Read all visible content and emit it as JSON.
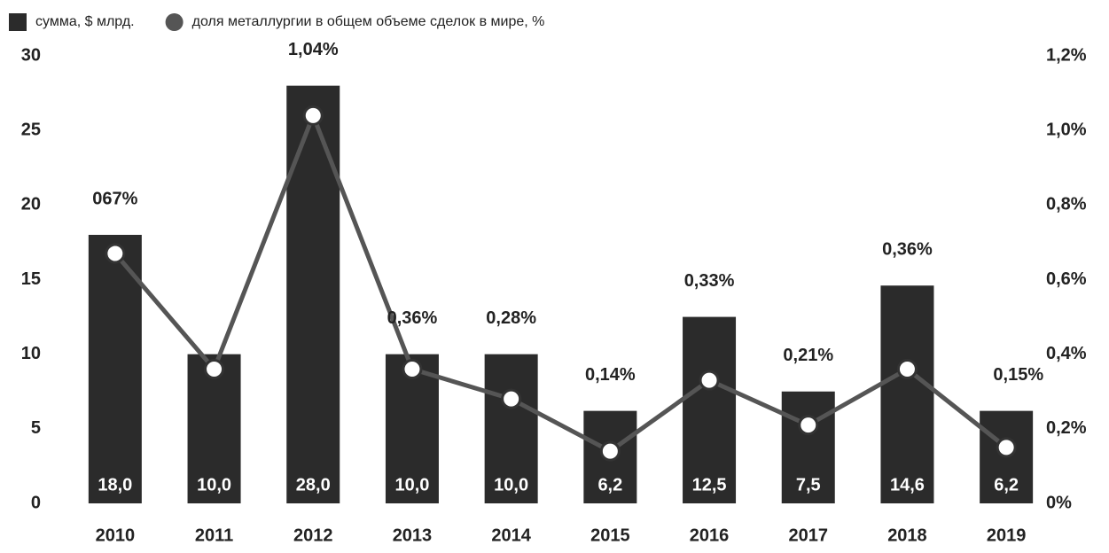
{
  "chart_data": {
    "type": "bar",
    "categories": [
      "2010",
      "2011",
      "2012",
      "2013",
      "2014",
      "2015",
      "2016",
      "2017",
      "2018",
      "2019"
    ],
    "series": [
      {
        "name": "сумма, $ млрд.",
        "type": "bar",
        "color": "#2b2b2b",
        "values": [
          18.0,
          10.0,
          28.0,
          10.0,
          10.0,
          6.2,
          12.5,
          7.5,
          14.6,
          6.2
        ],
        "value_labels": [
          "18,0",
          "10,0",
          "28,0",
          "10,0",
          "10,0",
          "6,2",
          "12,5",
          "7,5",
          "14,6",
          "6,2"
        ]
      },
      {
        "name": "доля металлургии в общем объеме сделок в мире, %",
        "type": "line",
        "axis": "y2",
        "color": "#555555",
        "values": [
          0.67,
          0.36,
          1.04,
          0.36,
          0.28,
          0.14,
          0.33,
          0.21,
          0.36,
          0.15
        ],
        "value_labels": [
          "067%",
          null,
          "1,04%",
          "0,36%",
          "0,28%",
          "0,14%",
          "0,33%",
          "0,21%",
          "0,36%",
          "0,15%"
        ]
      }
    ],
    "ylim": [
      0,
      30
    ],
    "yticks": [
      0,
      5,
      10,
      15,
      20,
      25,
      30
    ],
    "y2lim": [
      0,
      1.2
    ],
    "y2ticks": [
      {
        "value": 0,
        "label": "0%"
      },
      {
        "value": 0.2,
        "label": "0,2%"
      },
      {
        "value": 0.4,
        "label": "0,4%"
      },
      {
        "value": 0.6,
        "label": "0,6%"
      },
      {
        "value": 0.8,
        "label": "0,8%"
      },
      {
        "value": 1.0,
        "label": "1,0%"
      },
      {
        "value": 1.2,
        "label": "1,2%"
      }
    ],
    "grid": false
  }
}
